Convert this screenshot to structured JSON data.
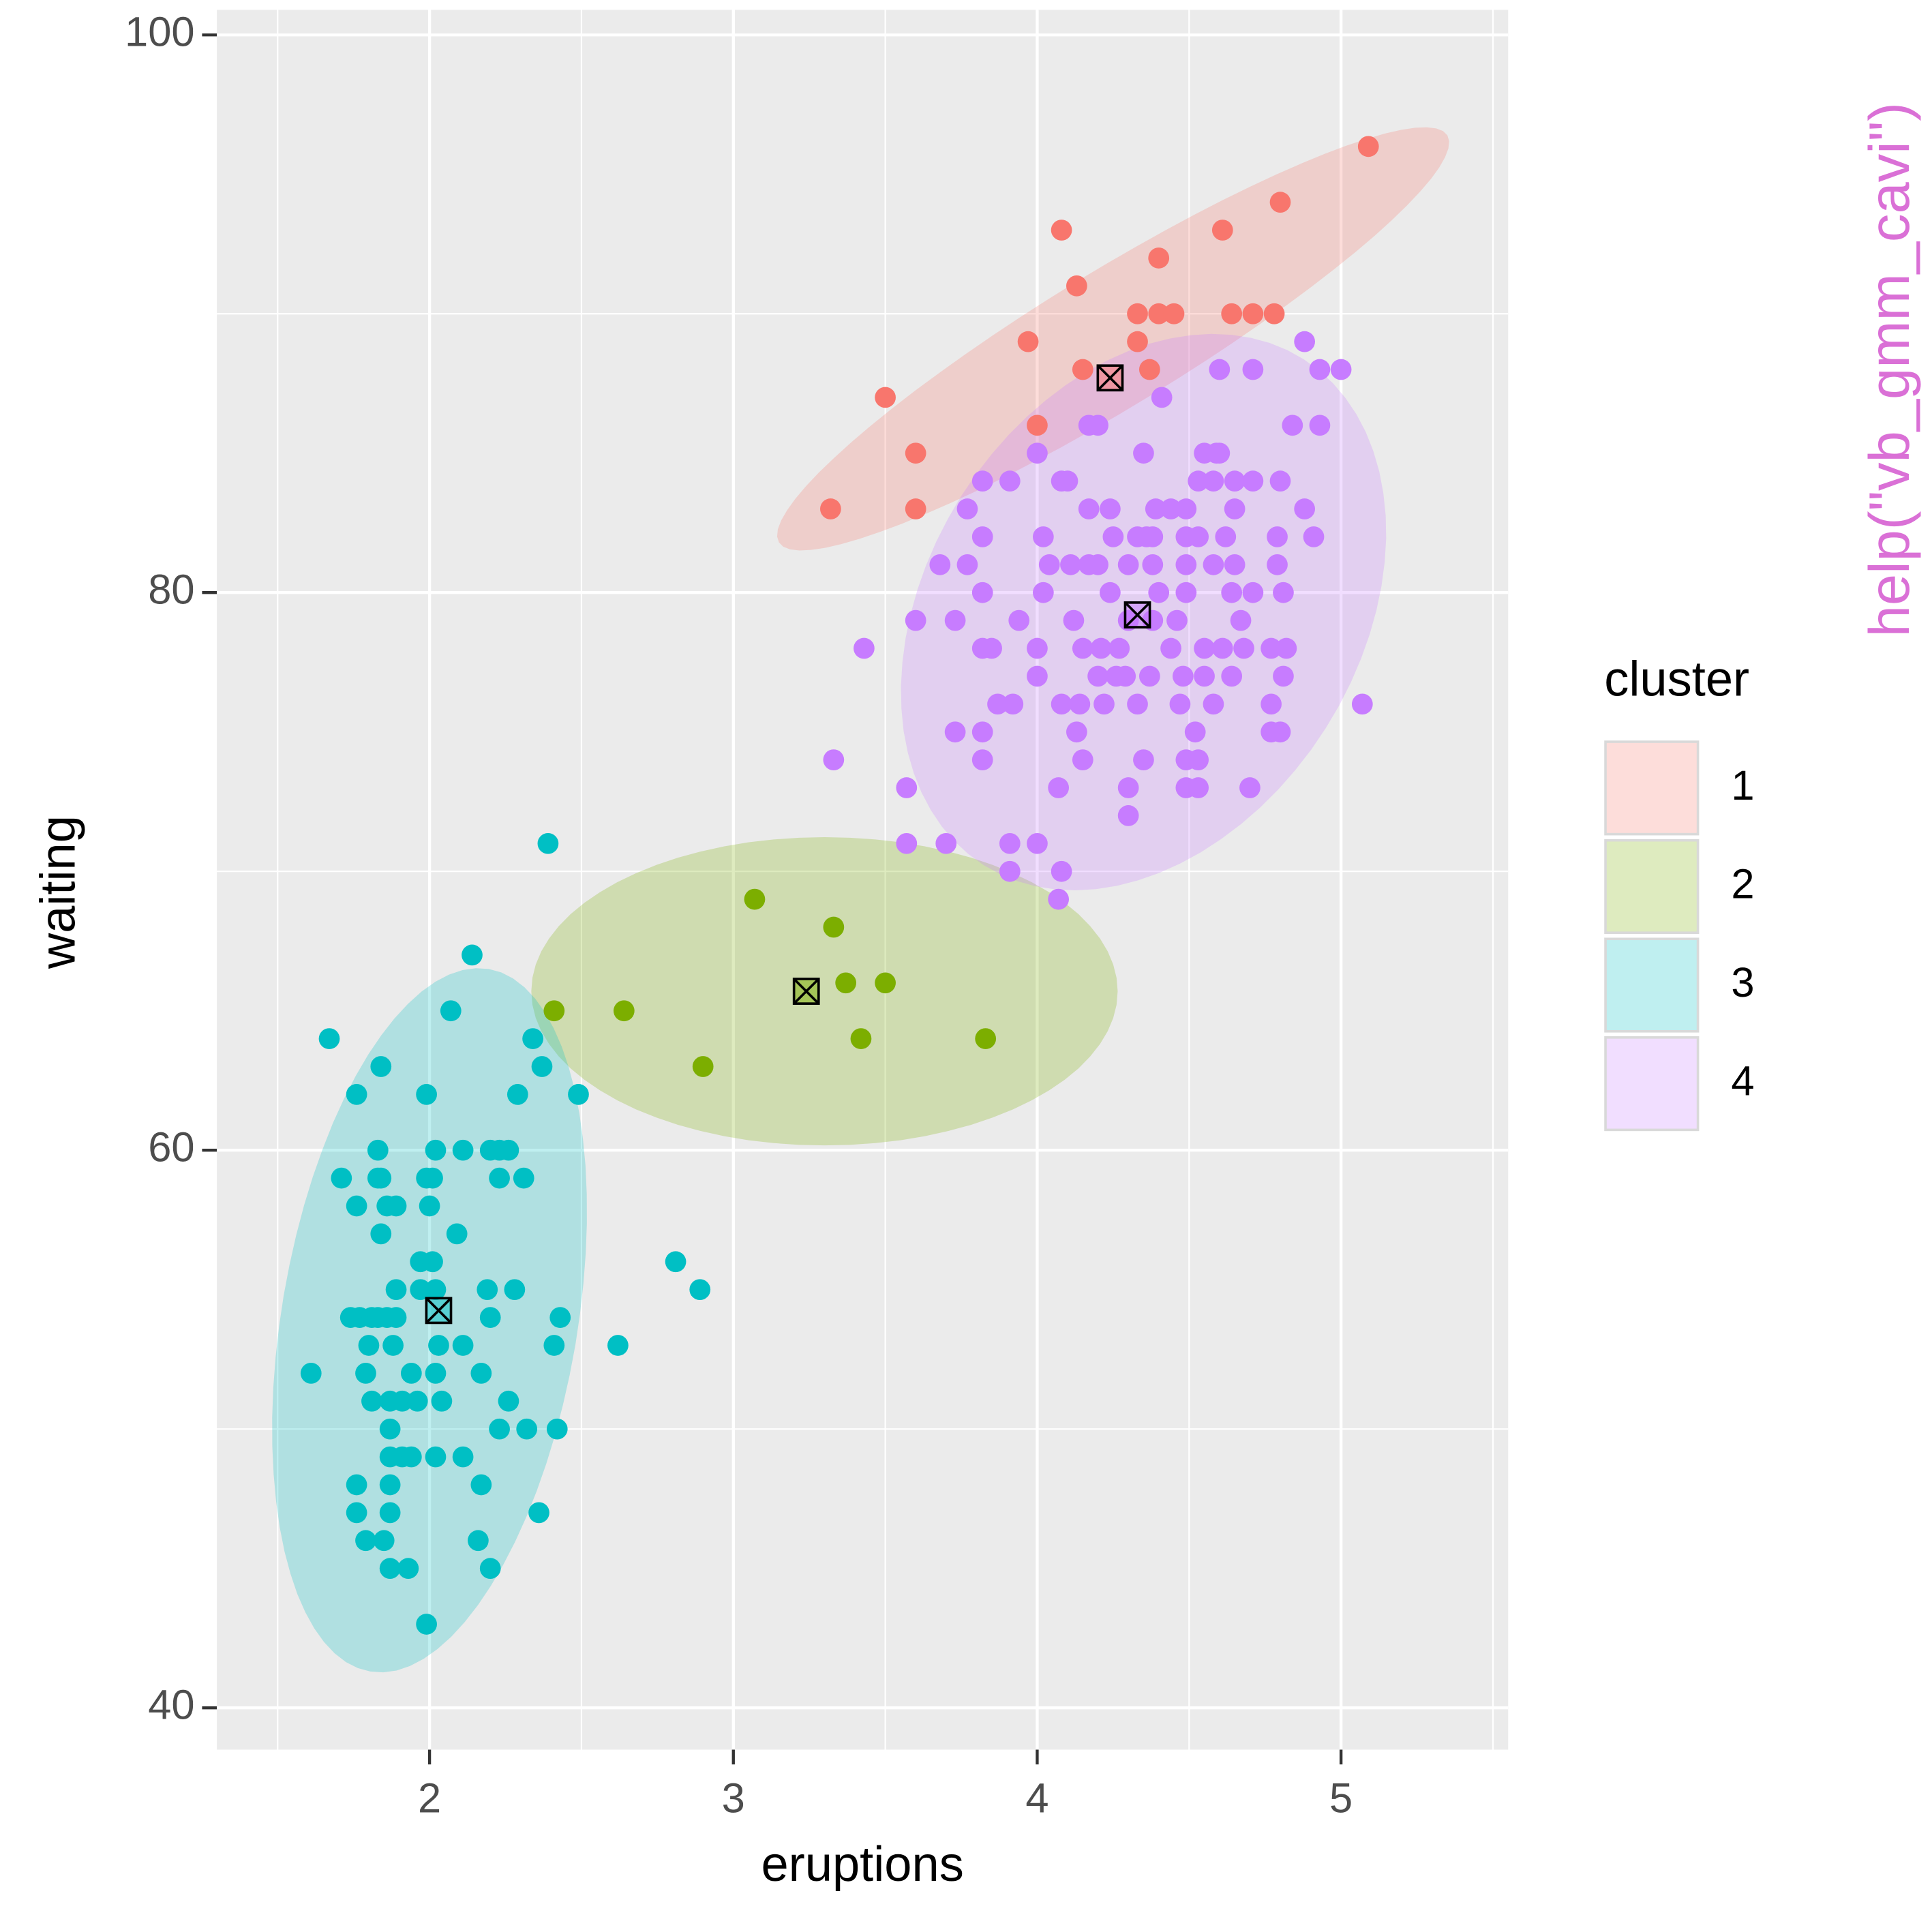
{
  "chart_data": {
    "type": "scatter",
    "xlabel": "eruptions",
    "ylabel": "waiting",
    "legend_title": "cluster",
    "legend_position": "right",
    "side_text": "help(\"vb_gmm_cavi\")",
    "side_text_color": "#da70d6",
    "grid": true,
    "xlim": [
      1.3,
      5.55
    ],
    "ylim": [
      38.5,
      100.9
    ],
    "xticks": [
      2,
      3,
      4,
      5
    ],
    "yticks": [
      40,
      60,
      80,
      100
    ],
    "series": [
      {
        "name": "1",
        "color": "#f8766d",
        "centroid": [
          4.24,
          87.7
        ],
        "ellipse": {
          "center": [
            4.25,
            89.1
          ],
          "axis1": [
            1.1,
            7.3
          ],
          "axis2": [
            0.116,
            -2.08
          ]
        },
        "x": [
          5.09,
          4.8,
          4.08,
          4.61,
          4.4,
          4.13,
          4.33,
          4.4,
          4.45,
          4.64,
          4.71,
          4.78,
          3.97,
          4.33,
          4.15,
          4.37,
          3.5,
          4.0,
          3.6,
          3.32,
          3.6
        ],
        "values": [
          96,
          94,
          93,
          93,
          92,
          91,
          90,
          90,
          90,
          90,
          90,
          90,
          89,
          89,
          88,
          88,
          87,
          86,
          85,
          83,
          83
        ]
      },
      {
        "name": "2",
        "color": "#7cae00",
        "centroid": [
          3.24,
          65.7
        ],
        "ellipse": {
          "center": [
            3.3,
            65.7
          ],
          "axis1": [
            0.965,
            0
          ],
          "axis2": [
            0,
            5.53
          ]
        },
        "x": [
          3.07,
          3.33,
          3.37,
          3.5,
          2.64,
          2.41,
          3.42,
          3.83,
          2.9
        ],
        "values": [
          69,
          68,
          66,
          66,
          65,
          65,
          64,
          64,
          63
        ]
      },
      {
        "name": "3",
        "color": "#00bfc4",
        "centroid": [
          2.03,
          54.25
        ],
        "ellipse": {
          "center": [
            2.0,
            53.9
          ],
          "axis1": [
            0.195,
            12.6
          ],
          "axis2": [
            0.48,
            -0.88
          ]
        },
        "x": [
          2.39,
          2.14,
          2.07,
          1.67,
          2.34,
          1.84,
          2.37,
          1.76,
          1.99,
          2.29,
          2.49,
          1.83,
          2.02,
          2.11,
          2.2,
          2.23,
          2.26,
          1.71,
          1.83,
          1.84,
          1.99,
          2.01,
          2.23,
          2.31,
          1.76,
          1.86,
          1.89,
          2.0,
          1.84,
          2.09,
          1.97,
          2.01,
          2.81,
          1.89,
          1.97,
          2.02,
          2.19,
          2.28,
          2.89,
          1.74,
          1.77,
          1.81,
          1.83,
          1.86,
          1.89,
          2.2,
          2.43,
          1.8,
          1.88,
          2.03,
          2.11,
          2.41,
          2.62,
          1.61,
          1.79,
          1.94,
          2.02,
          2.17,
          1.81,
          1.87,
          1.91,
          1.96,
          2.04,
          2.26,
          1.87,
          2.23,
          2.32,
          2.42,
          1.87,
          1.91,
          1.94,
          2.02,
          2.11,
          1.76,
          1.87,
          2.17,
          1.76,
          1.87,
          2.36,
          1.79,
          1.85,
          2.16,
          1.87,
          1.93,
          2.2,
          1.99
        ],
        "values": [
          71,
          67,
          65,
          64,
          64,
          63,
          63,
          62,
          62,
          62,
          62,
          60,
          60,
          60,
          60,
          60,
          60,
          59,
          59,
          59,
          59,
          59,
          59,
          59,
          58,
          58,
          58,
          58,
          57,
          57,
          56,
          56,
          56,
          55,
          55,
          55,
          55,
          55,
          55,
          54,
          54,
          54,
          54,
          54,
          54,
          54,
          54,
          53,
          53,
          53,
          53,
          53,
          53,
          52,
          52,
          52,
          52,
          52,
          51,
          51,
          51,
          51,
          51,
          51,
          50,
          50,
          50,
          50,
          49,
          49,
          49,
          49,
          49,
          48,
          48,
          48,
          47,
          47,
          47,
          46,
          46,
          46,
          45,
          45,
          45,
          43
        ]
      },
      {
        "name": "4",
        "color": "#c77cff",
        "centroid": [
          4.33,
          79.2
        ],
        "ellipse": {
          "center": [
            4.35,
            79.3
          ],
          "axis1": [
            0.527,
            9.07
          ],
          "axis2": [
            0.6,
            -4.16
          ]
        },
        "x": [
          4.88,
          4.6,
          4.71,
          4.93,
          5.0,
          4.41,
          4.17,
          4.2,
          4.84,
          4.93,
          4.0,
          4.35,
          4.55,
          4.6,
          4.59,
          3.82,
          3.91,
          4.08,
          4.1,
          4.53,
          4.58,
          4.65,
          4.71,
          4.8,
          3.77,
          4.17,
          4.24,
          4.39,
          4.44,
          4.49,
          4.65,
          4.88,
          3.82,
          4.02,
          4.25,
          4.33,
          4.36,
          4.38,
          4.49,
          4.53,
          4.62,
          4.79,
          4.91,
          3.68,
          3.77,
          4.04,
          4.11,
          4.17,
          4.2,
          4.3,
          4.38,
          4.49,
          4.58,
          4.65,
          4.79,
          3.82,
          4.02,
          4.24,
          4.4,
          4.49,
          4.64,
          4.71,
          4.81,
          3.6,
          3.73,
          3.94,
          4.12,
          4.3,
          4.38,
          4.46,
          4.67,
          3.43,
          3.82,
          3.85,
          4.0,
          4.15,
          4.21,
          4.27,
          4.44,
          4.55,
          4.61,
          4.68,
          4.77,
          4.82,
          4.0,
          4.2,
          4.26,
          4.29,
          4.37,
          4.48,
          4.55,
          4.64,
          4.81,
          3.87,
          3.92,
          4.08,
          4.14,
          4.22,
          4.33,
          4.47,
          4.58,
          4.77,
          5.07,
          3.73,
          3.82,
          4.13,
          4.52,
          4.77,
          4.8,
          3.33,
          3.82,
          4.15,
          4.35,
          4.49,
          4.53,
          3.57,
          4.07,
          4.3,
          4.49,
          4.53,
          4.7,
          4.3,
          3.57,
          3.7,
          3.91,
          4.0,
          3.91,
          4.08,
          4.07
        ],
        "values": [
          89,
          88,
          88,
          88,
          88,
          87,
          86,
          86,
          86,
          86,
          85,
          85,
          85,
          85,
          85,
          84,
          84,
          84,
          84,
          84,
          84,
          84,
          84,
          84,
          83,
          83,
          83,
          83,
          83,
          83,
          83,
          83,
          82,
          82,
          82,
          82,
          82,
          82,
          82,
          82,
          82,
          82,
          82,
          81,
          81,
          81,
          81,
          81,
          81,
          81,
          81,
          81,
          81,
          81,
          81,
          80,
          80,
          80,
          80,
          80,
          80,
          80,
          80,
          79,
          79,
          79,
          79,
          79,
          79,
          79,
          79,
          78,
          78,
          78,
          78,
          78,
          78,
          78,
          78,
          78,
          78,
          78,
          78,
          78,
          77,
          77,
          77,
          77,
          77,
          77,
          77,
          77,
          77,
          76,
          76,
          76,
          76,
          76,
          76,
          76,
          76,
          76,
          76,
          75,
          75,
          75,
          75,
          75,
          75,
          74,
          74,
          74,
          74,
          74,
          74,
          73,
          73,
          73,
          73,
          73,
          73,
          72,
          71,
          71,
          71,
          71,
          70,
          70,
          69
        ]
      }
    ]
  }
}
